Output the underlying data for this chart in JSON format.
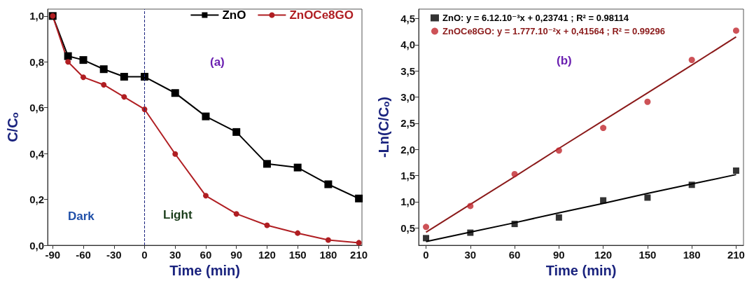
{
  "chart_data": [
    {
      "type": "line",
      "xlabel": "Time (min)",
      "ylabel": "C/Cₒ",
      "annotations": [
        "(a)",
        "Dark",
        "Light"
      ],
      "legend": "top right",
      "grid": false,
      "x": [
        -90,
        -75,
        -60,
        -40,
        -20,
        0,
        30,
        60,
        90,
        120,
        150,
        180,
        210
      ],
      "xlim": [
        -95,
        213
      ],
      "xticks": [
        -90,
        -60,
        -30,
        0,
        30,
        60,
        90,
        120,
        150,
        180,
        210
      ],
      "ylim": [
        0,
        1.03
      ],
      "yticks": [
        {
          "value": 0,
          "label": "0,0"
        },
        {
          "value": 0.2,
          "label": "0,2"
        },
        {
          "value": 0.4,
          "label": "0,4"
        },
        {
          "value": 0.6,
          "label": "0,6"
        },
        {
          "value": 0.8,
          "label": "0,8"
        },
        {
          "value": 1,
          "label": "1,0"
        }
      ],
      "ref_lines": [
        {
          "axis": "x",
          "value": 0,
          "color": "#1a237e",
          "line_style": "dashed"
        }
      ],
      "series": [
        {
          "name": "ZnO",
          "color": "#000000",
          "marker": "square",
          "values": [
            1.0,
            0.825,
            0.808,
            0.768,
            0.735,
            0.735,
            0.664,
            0.562,
            0.494,
            0.355,
            0.339,
            0.266,
            0.204
          ]
        },
        {
          "name": "ZnOCe8GO",
          "color": "#b01e22",
          "marker": "circle",
          "values": [
            1.0,
            0.8,
            0.733,
            0.7,
            0.647,
            0.593,
            0.398,
            0.216,
            0.137,
            0.087,
            0.053,
            0.023,
            0.011
          ]
        }
      ]
    },
    {
      "type": "scatter",
      "xlabel": "Time (min)",
      "ylabel": "-Ln(C/Cₒ)",
      "annotations": [
        "(b)"
      ],
      "legend": "top left",
      "grid": false,
      "x": [
        0,
        30,
        60,
        90,
        120,
        150,
        180,
        210
      ],
      "xlim": [
        -5,
        215
      ],
      "xticks": [
        0,
        30,
        60,
        90,
        120,
        150,
        180,
        210
      ],
      "ylim": [
        0.17,
        4.68
      ],
      "yticks": [
        {
          "value": 0.5,
          "label": "0,5"
        },
        {
          "value": 1,
          "label": "1,0"
        },
        {
          "value": 1.5,
          "label": "1,5"
        },
        {
          "value": 2,
          "label": "2,0"
        },
        {
          "value": 2.5,
          "label": "2,5"
        },
        {
          "value": 3,
          "label": "3,0"
        },
        {
          "value": 3.5,
          "label": "3,5"
        },
        {
          "value": 4,
          "label": "4,0"
        },
        {
          "value": 4.5,
          "label": "4,5"
        }
      ],
      "series": [
        {
          "name": "ZnO: y = 6.12.10⁻³x + 0,23741 ; R² = 0.98114",
          "color": "#000000",
          "marker": "square",
          "values": [
            0.306,
            0.41,
            0.577,
            0.7,
            1.027,
            1.08,
            1.324,
            1.595
          ]
        },
        {
          "name": "ZnOCe8GO: y = 1.777.10⁻²x + 0,41564 ; R² = 0.99296",
          "color": "#c0272d",
          "marker": "circle",
          "values": [
            0.52,
            0.92,
            1.53,
            1.98,
            2.41,
            2.91,
            3.71,
            4.27
          ]
        },
        {
          "type": "line",
          "color": "#000000",
          "marker": "none",
          "values": [
            0.24,
            0.42,
            0.6,
            0.79,
            0.97,
            1.16,
            1.34,
            1.52
          ]
        },
        {
          "type": "line",
          "color": "#8b1a1a",
          "marker": "none",
          "values": [
            0.42,
            0.95,
            1.48,
            2.02,
            2.55,
            3.08,
            3.61,
            4.15
          ]
        }
      ]
    }
  ]
}
